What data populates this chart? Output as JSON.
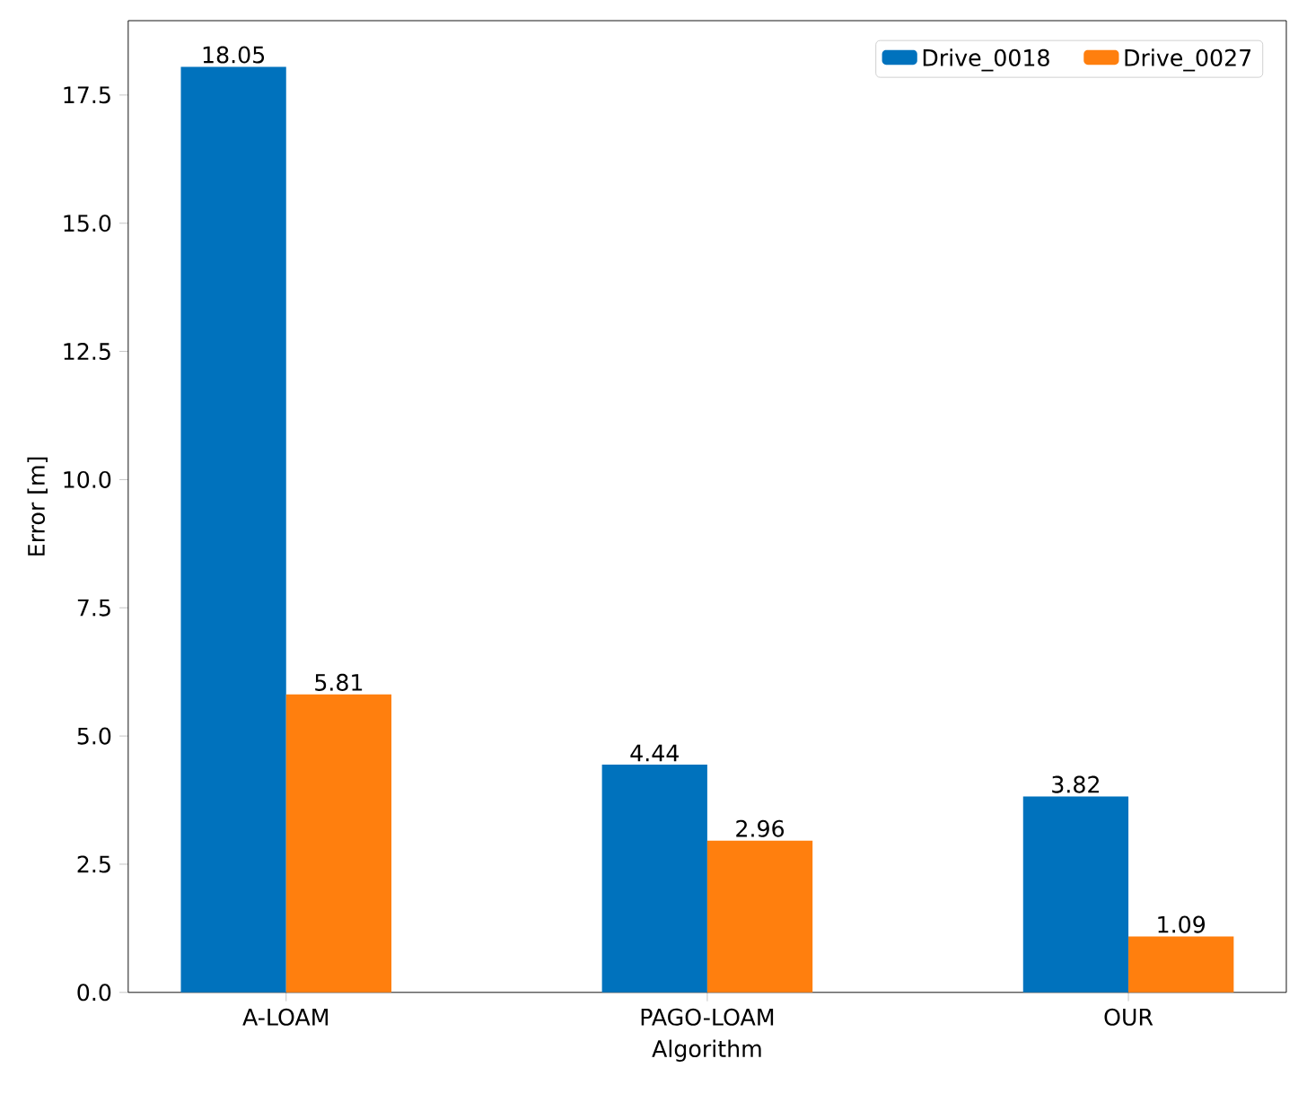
{
  "chart_data": {
    "type": "bar",
    "xlabel": "Algorithm",
    "ylabel": "Error [m]",
    "categories": [
      "A-LOAM",
      "PAGO-LOAM",
      "OUR"
    ],
    "series": [
      {
        "name": "Drive_0018",
        "color": "#0072bd",
        "values": [
          18.05,
          4.44,
          3.82
        ]
      },
      {
        "name": "Drive_0027",
        "color": "#ff7f0e",
        "values": [
          5.81,
          2.96,
          1.09
        ]
      }
    ],
    "ylim": [
      0,
      18.95
    ],
    "yticks": [
      {
        "value": 0,
        "label": "0.0"
      },
      2.5,
      {
        "value": 5,
        "label": "5.0"
      },
      7.5,
      {
        "value": 10,
        "label": "10.0"
      },
      12.5,
      {
        "value": 15,
        "label": "15.0"
      },
      17.5
    ],
    "data_labels": true,
    "legend": "top right"
  }
}
